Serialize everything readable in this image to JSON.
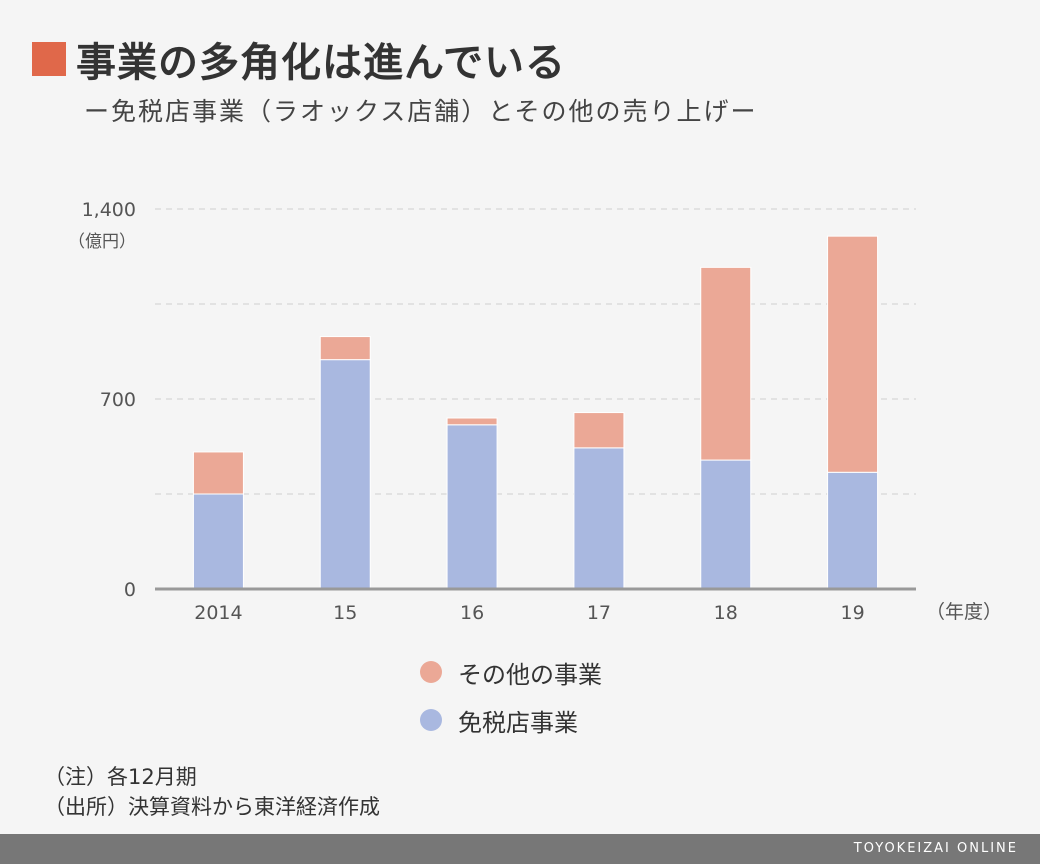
{
  "title": "事業の多角化は進んでいる",
  "subtitle": "ー免税店事業（ラオックス店舗）とその他の売り上げー",
  "colors": {
    "title_marker": "#e0684a",
    "other": "#eba896",
    "dutyfree": "#a9b8e0",
    "axis": "#999999",
    "grid": "#d6d6d6",
    "footer": "#777777"
  },
  "chart_data": {
    "type": "bar",
    "stacked": true,
    "categories": [
      "2014",
      "15",
      "16",
      "17",
      "18",
      "19"
    ],
    "series": [
      {
        "name": "免税店事業",
        "values": [
          350,
          845,
          605,
          520,
          475,
          430
        ]
      },
      {
        "name": "その他の事業",
        "values": [
          155,
          85,
          25,
          130,
          710,
          870
        ]
      }
    ],
    "ylim": [
      0,
      1400
    ],
    "yticks": [
      0,
      700,
      1400
    ],
    "ytick_labels": [
      "0",
      "700",
      "1,400"
    ],
    "ylabel": "（億円）",
    "xlabel": "（年度）",
    "grid": true
  },
  "legend": {
    "items": [
      {
        "label": "その他の事業",
        "color": "#eba896"
      },
      {
        "label": "免税店事業",
        "color": "#a9b8e0"
      }
    ]
  },
  "notes": {
    "line1": "（注）各12月期",
    "line2": "（出所）決算資料から東洋経済作成"
  },
  "footer": {
    "brand": "TOYOKEIZAI ONLINE"
  }
}
